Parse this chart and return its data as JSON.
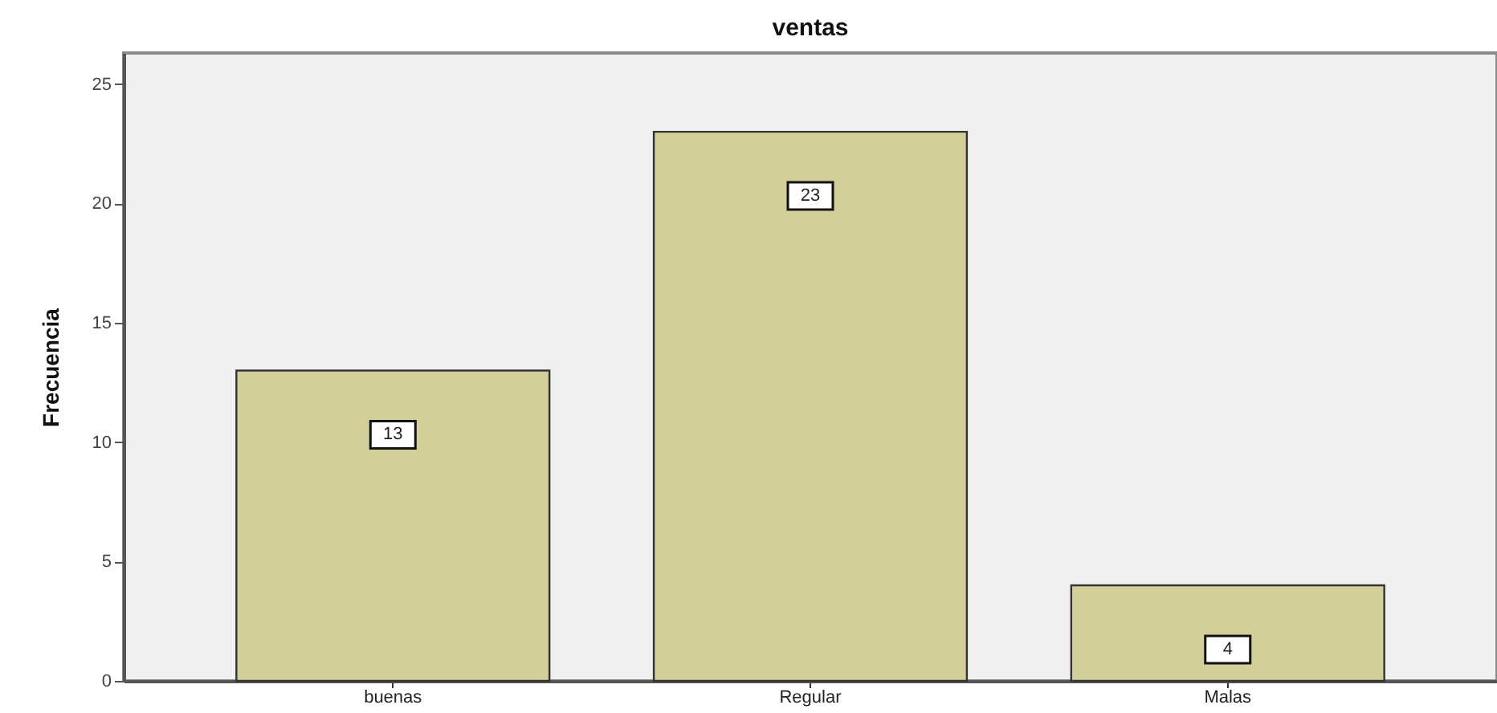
{
  "chart_data": {
    "type": "bar",
    "title": "ventas",
    "ylabel": "Frecuencia",
    "categories": [
      "buenas",
      "Regular",
      "Malas"
    ],
    "values": [
      13,
      23,
      4
    ],
    "color": "#d3cf98",
    "ylim": [
      0,
      26.3
    ],
    "yticks": [
      0,
      5,
      10,
      15,
      20,
      25
    ],
    "data_labels": true
  }
}
